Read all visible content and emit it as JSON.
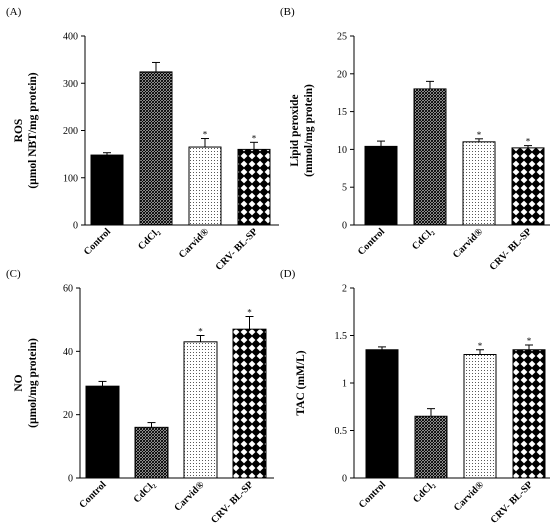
{
  "chart_data": [
    {
      "type": "bar",
      "panel": "(A)",
      "ylabel": [
        "ROS",
        "(µmol NBT/mg protein)"
      ],
      "ylim": [
        0,
        400
      ],
      "yticks": [
        "0",
        "100",
        "200",
        "300",
        "400"
      ],
      "categories": [
        "Control",
        "CdCl₂",
        "Carvid®",
        "CRV- BL-SP"
      ],
      "values": [
        148,
        324,
        165,
        160
      ],
      "errors": [
        5,
        20,
        18,
        15
      ],
      "significance": [
        "",
        "",
        "*",
        "*"
      ],
      "patterns": [
        "solid",
        "dense",
        "dots",
        "diamond"
      ]
    },
    {
      "type": "bar",
      "panel": "(B)",
      "ylabel": [
        "Lipid peroxide",
        "(mmol/mg protein)"
      ],
      "ylim": [
        0,
        25
      ],
      "yticks": [
        "0",
        "5",
        "10",
        "15",
        "20",
        "25"
      ],
      "categories": [
        "Control",
        "CdCl₂",
        "Carvid®",
        "CRV- BL-SP"
      ],
      "values": [
        10.4,
        18,
        11,
        10.2
      ],
      "errors": [
        0.7,
        1.0,
        0.4,
        0.3
      ],
      "significance": [
        "",
        "",
        "*",
        "*"
      ],
      "patterns": [
        "solid",
        "dense",
        "dots",
        "diamond"
      ]
    },
    {
      "type": "bar",
      "panel": "(C)",
      "ylabel": [
        "NO",
        "(µmol/mg protein)"
      ],
      "ylim": [
        0,
        60
      ],
      "yticks": [
        "0",
        "20",
        "40",
        "60"
      ],
      "categories": [
        "Control",
        "CdCl₂",
        "Carvid®",
        "CRV- BL-SP"
      ],
      "values": [
        29,
        16,
        43,
        47
      ],
      "errors": [
        1.5,
        1.5,
        2.0,
        4.0
      ],
      "significance": [
        "",
        "",
        "*",
        "*"
      ],
      "patterns": [
        "solid",
        "dense",
        "dots",
        "diamond"
      ]
    },
    {
      "type": "bar",
      "panel": "(D)",
      "ylabel": [
        "TAC (mM/L)"
      ],
      "ylim": [
        0,
        2
      ],
      "yticks": [
        "0",
        "0.5",
        "1",
        "1.5",
        "2"
      ],
      "categories": [
        "Control",
        "CdCl₂",
        "Carvid®",
        "CRV- BL-SP"
      ],
      "values": [
        1.35,
        0.65,
        1.3,
        1.35
      ],
      "errors": [
        0.03,
        0.08,
        0.05,
        0.05
      ],
      "significance": [
        "",
        "",
        "*",
        "*"
      ],
      "patterns": [
        "solid",
        "dense",
        "dots",
        "diamond"
      ]
    }
  ],
  "colors": {
    "bar_fill": "#000000",
    "axis": "#000000",
    "background": "#ffffff"
  }
}
